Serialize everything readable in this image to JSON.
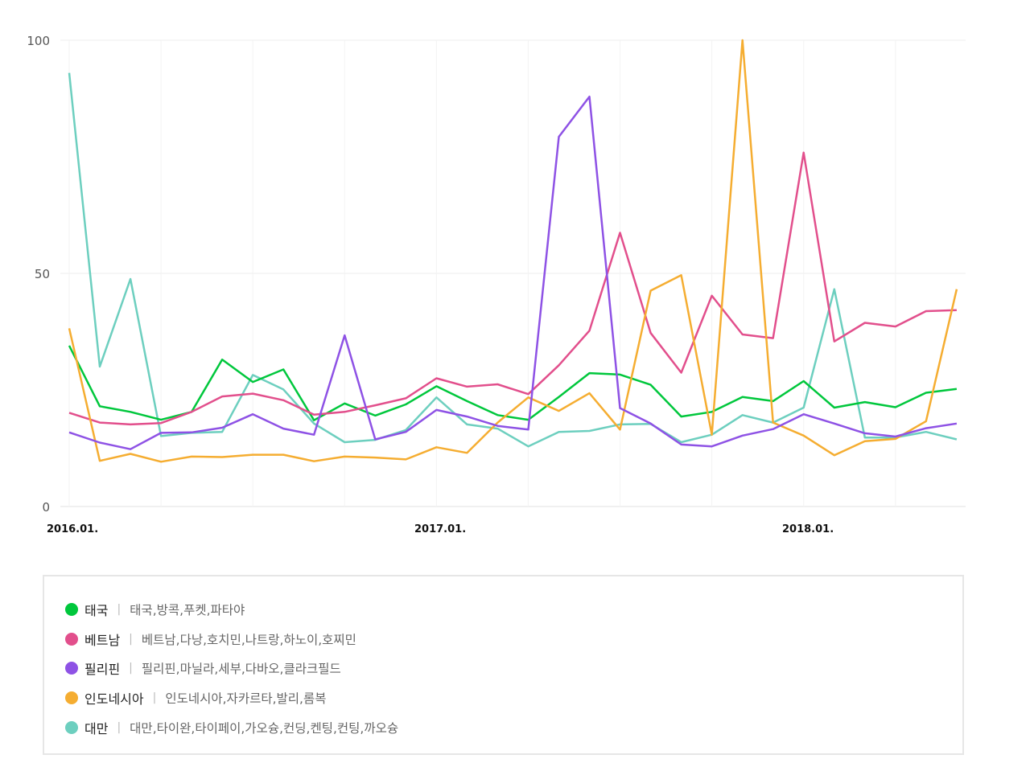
{
  "chart_data": {
    "type": "line",
    "title": "",
    "ylim": [
      0,
      100
    ],
    "yticks": [
      "0",
      "50",
      "100"
    ],
    "x_tick_labels": [
      "2016.01.",
      "2017.01.",
      "2018.01."
    ],
    "series": [
      {
        "name": "태국",
        "color": "#00c73c",
        "keywords": "태국,방콕,푸켓,파타야",
        "values": [
          34.5,
          21.5,
          20.3,
          18.6,
          20.3,
          31.5,
          26.7,
          29.4,
          18.5,
          22.1,
          19.5,
          21.9,
          25.8,
          22.6,
          19.6,
          18.6,
          23.5,
          28.6,
          28.3,
          26.1,
          19.3,
          20.3,
          23.5,
          22.6,
          26.9,
          21.2,
          22.4,
          21.3,
          24.4,
          25.2
        ]
      },
      {
        "name": "베트남",
        "color": "#e24f8c",
        "keywords": "베트남,다낭,호치민,나트랑,하노이,호찌민",
        "values": [
          20.1,
          18.0,
          17.6,
          17.9,
          20.3,
          23.6,
          24.2,
          22.8,
          19.7,
          20.3,
          21.7,
          23.2,
          27.5,
          25.7,
          26.2,
          24.1,
          30.3,
          37.7,
          58.7,
          37.2,
          28.7,
          45.2,
          36.9,
          36.1,
          75.9,
          35.4,
          39.4,
          38.6,
          41.9,
          42.1
        ]
      },
      {
        "name": "필리핀",
        "color": "#8e52e5",
        "keywords": "필리핀,마닐라,세부,다바오,클라크필드",
        "values": [
          15.9,
          13.7,
          12.3,
          15.8,
          15.9,
          16.9,
          19.8,
          16.7,
          15.4,
          36.7,
          14.4,
          16.0,
          20.7,
          19.3,
          17.3,
          16.5,
          79.3,
          87.9,
          21.1,
          17.8,
          13.3,
          12.9,
          15.2,
          16.6,
          19.8,
          17.8,
          15.7,
          15.0,
          16.8,
          17.8
        ]
      },
      {
        "name": "인도네시아",
        "color": "#f5ad31",
        "keywords": "인도네시아,자카르타,발리,롬복",
        "values": [
          38.2,
          9.8,
          11.3,
          9.6,
          10.7,
          10.6,
          11.1,
          11.1,
          9.7,
          10.7,
          10.5,
          10.1,
          12.7,
          11.5,
          18.0,
          23.4,
          20.5,
          24.3,
          16.5,
          46.3,
          49.6,
          15.4,
          100,
          18.0,
          15.2,
          11.0,
          14.0,
          14.5,
          18.3,
          46.6
        ]
      },
      {
        "name": "대만",
        "color": "#6dcfbf",
        "keywords": "대만,타이완,타이페이,가오슝,컨딩,켄팅,컨팅,까오슝",
        "values": [
          93.0,
          30.0,
          48.8,
          15.1,
          15.8,
          16.0,
          28.2,
          25.1,
          17.8,
          13.8,
          14.3,
          16.4,
          23.4,
          17.6,
          16.7,
          12.9,
          16.0,
          16.2,
          17.6,
          17.7,
          13.8,
          15.4,
          19.6,
          18.0,
          21.2,
          46.6,
          14.8,
          14.8,
          16.0,
          14.4
        ]
      }
    ]
  }
}
